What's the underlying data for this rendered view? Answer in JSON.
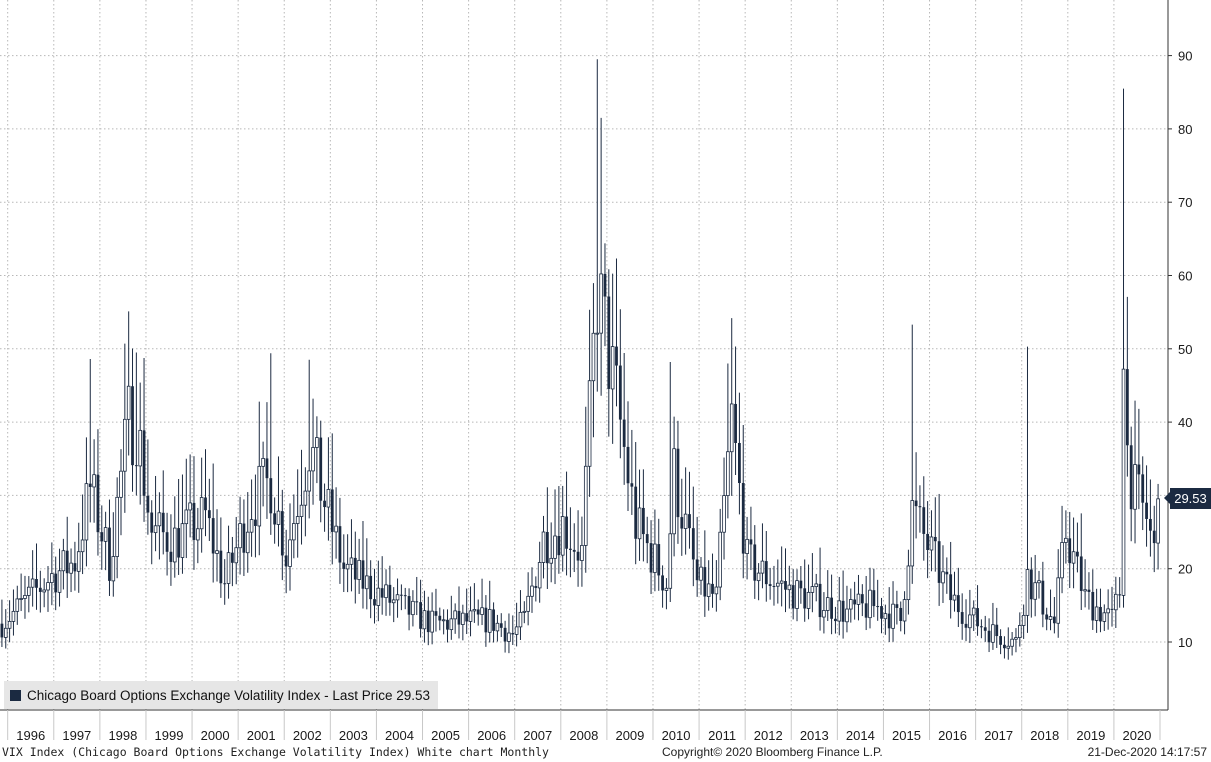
{
  "chart_data": {
    "type": "candlestick",
    "title": "",
    "series_name": "Chicago Board Options Exchange Volatility Index - Last Price",
    "ylim": [
      0,
      95
    ],
    "y_ticks": [
      10,
      20,
      30,
      40,
      50,
      60,
      70,
      80,
      90
    ],
    "x_tick_labels": [
      "1996",
      "1997",
      "1998",
      "1999",
      "2000",
      "2001",
      "2002",
      "2003",
      "2004",
      "2005",
      "2006",
      "2007",
      "2008",
      "2009",
      "2010",
      "2011",
      "2012",
      "2013",
      "2014",
      "2015",
      "2016",
      "2017",
      "2018",
      "2019",
      "2020"
    ],
    "x_range": [
      "1995-11",
      "2021-01"
    ],
    "grid": true,
    "legend_position": "bottom-left",
    "last_price": 29.53,
    "peaks": [
      {
        "date": "1997-10",
        "high": 48.6
      },
      {
        "date": "1998-10",
        "high": 49.5
      },
      {
        "date": "2001-09",
        "high": 49.4
      },
      {
        "date": "2002-07",
        "high": 48.5
      },
      {
        "date": "2008-10",
        "high": 89.5
      },
      {
        "date": "2008-11",
        "high": 81.5
      },
      {
        "date": "2010-05",
        "high": 48.2
      },
      {
        "date": "2011-08",
        "high": 48.0
      },
      {
        "date": "2015-08",
        "high": 53.3
      },
      {
        "date": "2018-02",
        "high": 50.3
      },
      {
        "date": "2020-03",
        "high": 85.5
      }
    ],
    "lows": [
      {
        "date": "2007-01",
        "low": 9.4
      },
      {
        "date": "2017-11",
        "low": 8.6
      }
    ]
  },
  "legend": {
    "label": "Chicago Board Options Exchange Volatility Index - Last Price 29.53"
  },
  "last_badge": "29.53",
  "footer": {
    "left": "VIX Index (Chicago Board Options Exchange Volatility Index) White chart  Monthly",
    "center": "Copyright© 2020 Bloomberg Finance L.P.",
    "right": "21-Dec-2020 14:17:57"
  },
  "colors": {
    "candle": "#1b2a41",
    "grid": "#b8b8b8",
    "legend_bg": "#e6e6e6"
  }
}
